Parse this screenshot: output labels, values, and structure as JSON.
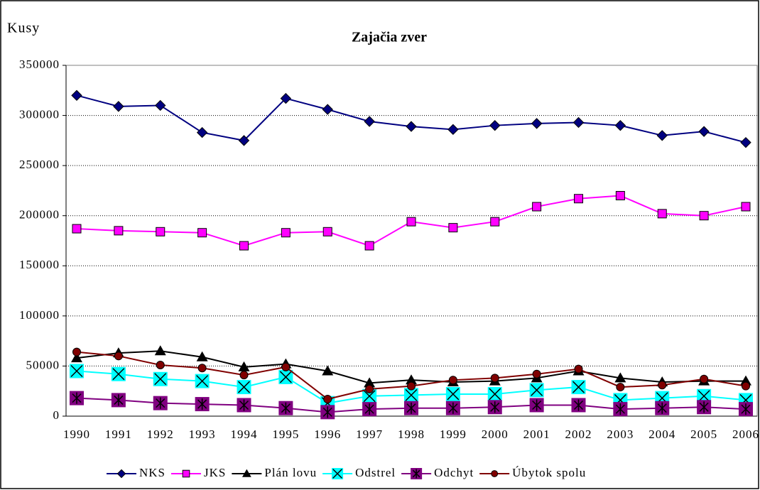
{
  "chart_data": {
    "type": "line",
    "title": "Zajačia zver",
    "y_label": "Kusy",
    "categories": [
      "1990",
      "1991",
      "1992",
      "1993",
      "1994",
      "1995",
      "1996",
      "1997",
      "1998",
      "1999",
      "2000",
      "2001",
      "2002",
      "2003",
      "2004",
      "2005",
      "2006"
    ],
    "ylim": [
      0,
      350000
    ],
    "yticks": [
      0,
      50000,
      100000,
      150000,
      200000,
      250000,
      300000,
      350000
    ],
    "grid": true,
    "legend": "bottom",
    "series": [
      {
        "name": "NKS",
        "color": "#000080",
        "marker": "diamond",
        "values": [
          320000,
          309000,
          310000,
          283000,
          275000,
          317000,
          306000,
          294000,
          289000,
          286000,
          290000,
          292000,
          293000,
          290000,
          280000,
          284000,
          273000
        ]
      },
      {
        "name": "JKS",
        "color": "#FF00FF",
        "marker": "square",
        "values": [
          187000,
          185000,
          184000,
          183000,
          170000,
          183000,
          184000,
          170000,
          194000,
          188000,
          194000,
          209000,
          217000,
          220000,
          202000,
          200000,
          209000
        ]
      },
      {
        "name": "Plán lovu",
        "color": "#000000",
        "marker": "triangle",
        "values": [
          58000,
          63000,
          65000,
          59000,
          49000,
          52000,
          45000,
          33000,
          36000,
          34000,
          35000,
          38000,
          45000,
          38000,
          34000,
          35000,
          35000
        ]
      },
      {
        "name": "Odstrel",
        "color": "#00FFFF",
        "marker": "x",
        "values": [
          45000,
          42000,
          37000,
          35000,
          29000,
          39000,
          13000,
          20000,
          21000,
          22000,
          22000,
          26000,
          29000,
          16000,
          18000,
          20000,
          16000
        ]
      },
      {
        "name": "Odchyt",
        "color": "#800080",
        "marker": "star",
        "values": [
          18000,
          16000,
          13000,
          12000,
          11000,
          8000,
          4000,
          7000,
          8000,
          8000,
          9000,
          11000,
          11000,
          7000,
          8000,
          9000,
          7000
        ]
      },
      {
        "name": "Úbytok spolu",
        "color": "#800000",
        "marker": "circle",
        "values": [
          64000,
          60000,
          51000,
          48000,
          41000,
          49000,
          17000,
          27000,
          30000,
          36000,
          38000,
          42000,
          47000,
          29000,
          31000,
          37000,
          30000
        ]
      }
    ]
  }
}
